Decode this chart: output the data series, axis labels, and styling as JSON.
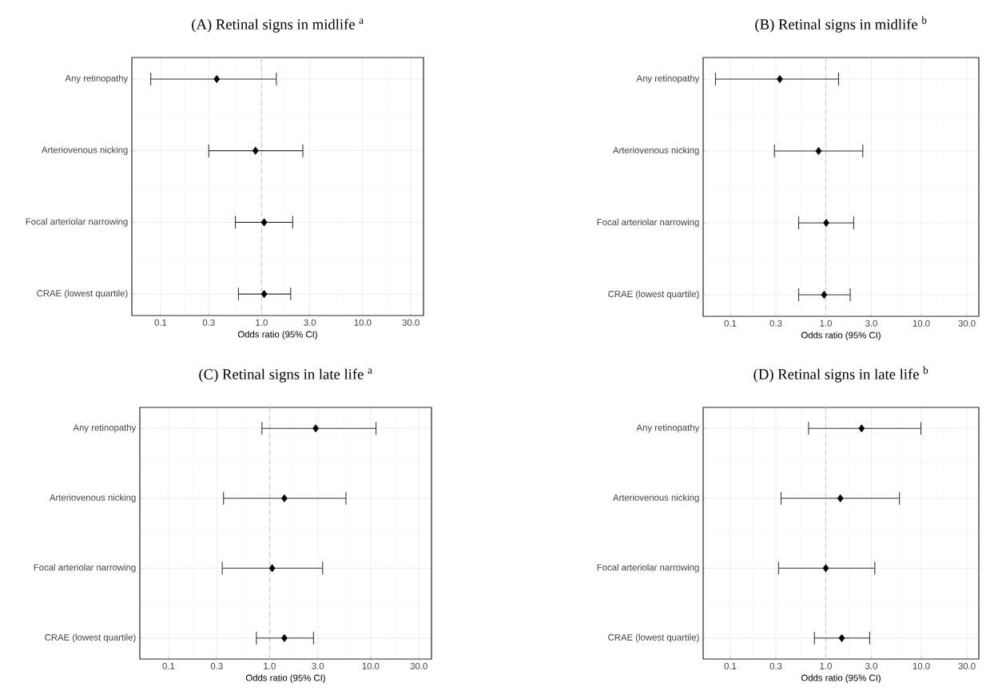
{
  "chart_data": [
    {
      "type": "scatter",
      "orientation": "horizontal",
      "title": "(A) Retinal signs in midlife $^{a}$",
      "xlabel": "Odds ratio (95% CI)",
      "categories": [
        "Any retinopathy",
        "Arteriovenous nicking",
        "Focal arteriolar narrowing",
        "CRAE (lowest quartile)"
      ],
      "values": [
        0.36,
        0.87,
        1.06,
        1.06
      ],
      "errors": [
        [
          0.08,
          1.4
        ],
        [
          0.3,
          2.56
        ],
        [
          0.55,
          2.03
        ],
        [
          0.59,
          1.94
        ]
      ],
      "color": "#000000",
      "marker": "diamond",
      "log": "x",
      "xlim": [
        0.052,
        40
      ],
      "xticks": [
        {
          "value": 0.1,
          "label": "0.1"
        },
        {
          "value": 0.3,
          "label": "0.3"
        },
        {
          "value": 1,
          "label": "1.0"
        },
        {
          "value": 3,
          "label": "3.0"
        },
        {
          "value": 10,
          "label": "10.0"
        },
        {
          "value": 30,
          "label": "30.0"
        }
      ],
      "ref_lines": [
        {
          "axis": "x",
          "value": 1,
          "color": "#cccccc",
          "line_style": "dashed"
        }
      ],
      "grid": true
    },
    {
      "type": "scatter",
      "orientation": "horizontal",
      "title": "(B) Retinal signs in midlife $^{b}$",
      "xlabel": "Odds ratio (95% CI)",
      "categories": [
        "Any retinopathy",
        "Arteriovenous nicking",
        "Focal arteriolar narrowing",
        "CRAE (lowest quartile)"
      ],
      "values": [
        0.33,
        0.84,
        1.01,
        0.96
      ],
      "errors": [
        [
          0.07,
          1.36
        ],
        [
          0.29,
          2.44
        ],
        [
          0.52,
          1.96
        ],
        [
          0.52,
          1.8
        ]
      ],
      "color": "#000000",
      "marker": "diamond",
      "log": "x",
      "xlim": [
        0.052,
        40
      ],
      "xticks": [
        {
          "value": 0.1,
          "label": "0.1"
        },
        {
          "value": 0.3,
          "label": "0.3"
        },
        {
          "value": 1,
          "label": "1.0"
        },
        {
          "value": 3,
          "label": "3.0"
        },
        {
          "value": 10,
          "label": "10.0"
        },
        {
          "value": 30,
          "label": "30.0"
        }
      ],
      "ref_lines": [
        {
          "axis": "x",
          "value": 1,
          "color": "#cccccc",
          "line_style": "dashed"
        }
      ],
      "grid": true
    },
    {
      "type": "scatter",
      "orientation": "horizontal",
      "title": "(C) Retinal signs in late life $^{a}$",
      "xlabel": "Odds ratio (95% CI)",
      "categories": [
        "Any retinopathy",
        "Arteriovenous nicking",
        "Focal arteriolar narrowing",
        "CRAE (lowest quartile)"
      ],
      "values": [
        2.86,
        1.4,
        1.06,
        1.4
      ],
      "errors": [
        [
          0.84,
          11.3
        ],
        [
          0.35,
          5.7
        ],
        [
          0.34,
          3.35
        ],
        [
          0.74,
          2.72
        ]
      ],
      "color": "#000000",
      "marker": "diamond",
      "log": "x",
      "xlim": [
        0.052,
        40
      ],
      "xticks": [
        {
          "value": 0.1,
          "label": "0.1"
        },
        {
          "value": 0.3,
          "label": "0.3"
        },
        {
          "value": 1,
          "label": "1.0"
        },
        {
          "value": 3,
          "label": "3.0"
        },
        {
          "value": 10,
          "label": "10.0"
        },
        {
          "value": 30,
          "label": "30.0"
        }
      ],
      "ref_lines": [
        {
          "axis": "x",
          "value": 1,
          "color": "#cccccc",
          "line_style": "dashed"
        }
      ],
      "grid": true
    },
    {
      "type": "scatter",
      "orientation": "horizontal",
      "title": "(D) Retinal signs in late life $^{b}$",
      "xlabel": "Odds ratio (95% CI)",
      "categories": [
        "Any retinopathy",
        "Arteriovenous nicking",
        "Focal arteriolar narrowing",
        "CRAE (lowest quartile)"
      ],
      "values": [
        2.37,
        1.42,
        1.0,
        1.47
      ],
      "errors": [
        [
          0.66,
          9.9
        ],
        [
          0.34,
          5.9
        ],
        [
          0.32,
          3.26
        ],
        [
          0.76,
          2.88
        ]
      ],
      "color": "#000000",
      "marker": "diamond",
      "log": "x",
      "xlim": [
        0.052,
        40
      ],
      "xticks": [
        {
          "value": 0.1,
          "label": "0.1"
        },
        {
          "value": 0.3,
          "label": "0.3"
        },
        {
          "value": 1,
          "label": "1.0"
        },
        {
          "value": 3,
          "label": "3.0"
        },
        {
          "value": 10,
          "label": "10.0"
        },
        {
          "value": 30,
          "label": "30.0"
        }
      ],
      "ref_lines": [
        {
          "axis": "x",
          "value": 1,
          "color": "#cccccc",
          "line_style": "dashed"
        }
      ],
      "grid": true
    }
  ]
}
